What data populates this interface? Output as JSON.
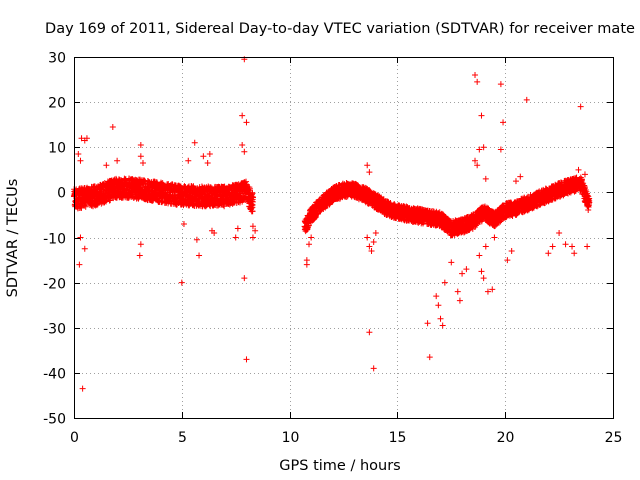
{
  "chart_data": {
    "type": "scatter",
    "title": "Day 169 of 2011, Sidereal Day-to-day VTEC variation (SDTVAR) for receiver mate",
    "xlabel": "GPS time / hours",
    "ylabel": "SDTVAR / TECUs",
    "xlim": [
      0,
      25
    ],
    "ylim": [
      -50,
      30
    ],
    "xticks": [
      0,
      5,
      10,
      15,
      20,
      25
    ],
    "xtick_labels": [
      "0",
      "5",
      "10",
      "15",
      "20",
      "25"
    ],
    "yticks": [
      -50,
      -40,
      -30,
      -20,
      -10,
      0,
      10,
      20,
      30
    ],
    "ytick_labels": [
      "-50",
      "-40",
      "-30",
      "-20",
      "-10",
      "0",
      "10",
      "20",
      "30"
    ],
    "grid": true,
    "marker": "+",
    "color": "#ff0000",
    "band_segments": [
      {
        "t": [
          0.0,
          1.0,
          2.0,
          3.0,
          4.0,
          5.0,
          6.0,
          7.0,
          8.0,
          8.3
        ],
        "center": [
          -1.5,
          -0.8,
          1.0,
          0.8,
          0.0,
          -0.7,
          -0.9,
          -0.9,
          0.2,
          -2.5
        ],
        "half_width": 2.2
      },
      {
        "t": [
          10.7,
          11.0,
          11.5,
          12.0,
          12.5,
          13.0,
          13.5,
          14.0,
          14.5,
          15.0,
          15.5,
          16.0,
          16.5,
          17.0,
          17.5,
          18.0,
          18.5,
          19.0,
          19.5,
          20.0,
          20.5,
          21.0,
          21.5,
          22.0,
          22.5,
          23.0,
          23.5,
          23.9
        ],
        "center": [
          -8.0,
          -5.0,
          -2.5,
          -0.5,
          0.5,
          0.5,
          -0.5,
          -2.0,
          -3.5,
          -4.3,
          -4.8,
          -5.2,
          -5.6,
          -6.0,
          -8.0,
          -7.5,
          -6.5,
          -4.5,
          -6.0,
          -4.0,
          -3.5,
          -2.5,
          -1.5,
          -0.5,
          0.5,
          1.5,
          2.0,
          -3.0
        ],
        "half_width": 1.6
      }
    ],
    "outliers": [
      [
        0.2,
        8.5
      ],
      [
        0.3,
        7.0
      ],
      [
        0.35,
        12.0
      ],
      [
        0.5,
        11.5
      ],
      [
        0.6,
        12.0
      ],
      [
        0.25,
        -16.0
      ],
      [
        0.4,
        -43.5
      ],
      [
        0.3,
        -10.0
      ],
      [
        0.5,
        -12.5
      ],
      [
        1.8,
        14.5
      ],
      [
        1.5,
        6.0
      ],
      [
        2.0,
        7.0
      ],
      [
        3.1,
        10.5
      ],
      [
        3.1,
        8.0
      ],
      [
        3.1,
        -11.5
      ],
      [
        3.05,
        -14.0
      ],
      [
        3.2,
        6.5
      ],
      [
        5.0,
        -20.0
      ],
      [
        5.1,
        -7.0
      ],
      [
        5.3,
        7.0
      ],
      [
        5.6,
        11.0
      ],
      [
        5.7,
        -10.5
      ],
      [
        5.8,
        -14.0
      ],
      [
        6.0,
        8.0
      ],
      [
        6.2,
        6.5
      ],
      [
        6.3,
        8.5
      ],
      [
        6.5,
        -9.0
      ],
      [
        6.4,
        -8.5
      ],
      [
        7.9,
        29.5
      ],
      [
        7.8,
        17.0
      ],
      [
        8.0,
        15.5
      ],
      [
        7.9,
        9.0
      ],
      [
        7.8,
        10.5
      ],
      [
        7.9,
        -19.0
      ],
      [
        8.0,
        -37.0
      ],
      [
        7.6,
        -8.0
      ],
      [
        7.5,
        -10.0
      ],
      [
        8.3,
        -10.0
      ],
      [
        8.4,
        -8.5
      ],
      [
        8.3,
        -7.5
      ],
      [
        10.8,
        -15.0
      ],
      [
        10.8,
        -16.0
      ],
      [
        10.9,
        -11.5
      ],
      [
        11.0,
        -10.0
      ],
      [
        13.6,
        6.0
      ],
      [
        13.7,
        4.5
      ],
      [
        13.8,
        -1.0
      ],
      [
        13.6,
        -10.0
      ],
      [
        13.7,
        -12.0
      ],
      [
        13.8,
        -13.0
      ],
      [
        13.9,
        -11.0
      ],
      [
        14.0,
        -9.0
      ],
      [
        13.7,
        -31.0
      ],
      [
        13.9,
        -39.0
      ],
      [
        16.4,
        -29.0
      ],
      [
        16.5,
        -36.5
      ],
      [
        16.8,
        -23.0
      ],
      [
        16.9,
        -25.0
      ],
      [
        17.0,
        -28.0
      ],
      [
        17.1,
        -29.5
      ],
      [
        17.2,
        -20.0
      ],
      [
        17.5,
        -15.5
      ],
      [
        17.8,
        -22.0
      ],
      [
        17.9,
        -24.0
      ],
      [
        18.0,
        -18.0
      ],
      [
        18.2,
        -17.0
      ],
      [
        18.6,
        26.0
      ],
      [
        18.7,
        24.5
      ],
      [
        18.9,
        17.0
      ],
      [
        18.8,
        9.5
      ],
      [
        19.0,
        10.0
      ],
      [
        18.6,
        7.0
      ],
      [
        18.7,
        6.0
      ],
      [
        19.1,
        3.0
      ],
      [
        18.9,
        -17.5
      ],
      [
        19.0,
        -19.0
      ],
      [
        19.2,
        -22.0
      ],
      [
        19.4,
        -21.5
      ],
      [
        18.8,
        -14.0
      ],
      [
        19.1,
        -12.0
      ],
      [
        19.5,
        -10.0
      ],
      [
        19.8,
        24.0
      ],
      [
        19.9,
        15.5
      ],
      [
        19.8,
        9.5
      ],
      [
        20.1,
        -15.0
      ],
      [
        20.3,
        -13.0
      ],
      [
        21.0,
        20.5
      ],
      [
        20.5,
        2.5
      ],
      [
        20.7,
        3.5
      ],
      [
        22.0,
        -13.5
      ],
      [
        22.2,
        -12.0
      ],
      [
        22.5,
        -9.0
      ],
      [
        22.8,
        -11.5
      ],
      [
        23.1,
        -12.0
      ],
      [
        23.5,
        19.0
      ],
      [
        23.4,
        5.0
      ],
      [
        23.7,
        4.0
      ],
      [
        23.8,
        -12.0
      ],
      [
        23.2,
        -13.5
      ]
    ]
  }
}
